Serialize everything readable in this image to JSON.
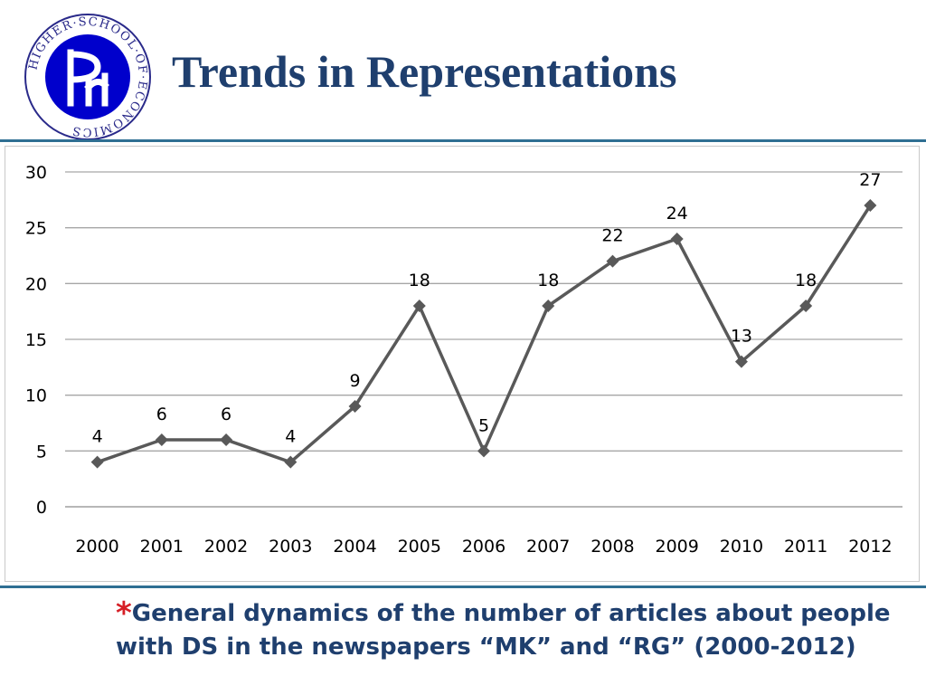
{
  "slide": {
    "title": "Trends in Representations",
    "logo_text": "HIGHER·SCHOOL·OF·ECONOMICS",
    "caption_star": "*",
    "caption": "General dynamics of the number of articles about people with DS in the newspapers “MK” and “RG” (2000-2012)"
  },
  "colors": {
    "title": "#1f3f6e",
    "rule": "#2f6f93",
    "star": "#d61f26",
    "series": "#595959",
    "grid": "#a6a6a6",
    "logo_blue": "#0000cc"
  },
  "chart_data": {
    "type": "line",
    "title": "",
    "xlabel": "",
    "ylabel": "",
    "categories": [
      "2000",
      "2001",
      "2002",
      "2003",
      "2004",
      "2005",
      "2006",
      "2007",
      "2008",
      "2009",
      "2010",
      "2011",
      "2012"
    ],
    "series": [
      {
        "values": [
          4,
          6,
          6,
          4,
          9,
          18,
          5,
          18,
          22,
          24,
          13,
          18,
          27
        ]
      }
    ],
    "data_labels": [
      "4",
      "6",
      "6",
      "4",
      "9",
      "18",
      "5",
      "18",
      "22",
      "24",
      "13",
      "18",
      "27"
    ],
    "ylim": [
      0,
      30
    ],
    "yticks": [
      "0",
      "5",
      "10",
      "15",
      "20",
      "25",
      "30"
    ],
    "grid": true,
    "marker": "diamond",
    "legend": "none"
  }
}
